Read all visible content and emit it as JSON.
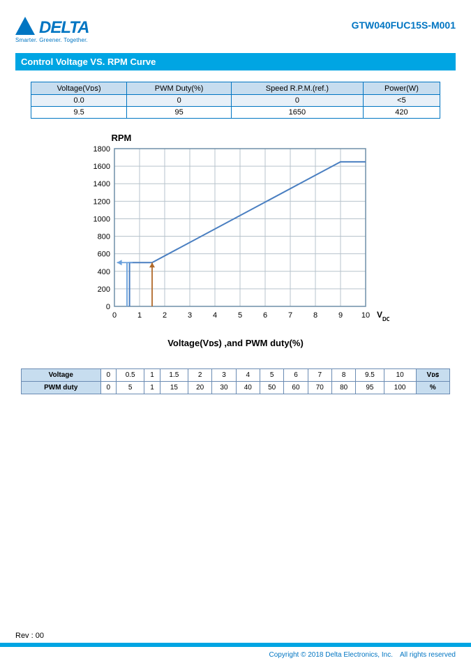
{
  "header": {
    "logo_text": "DELTA",
    "tagline": "Smarter.  Greener.  Together.",
    "part_number": "GTW040FUC15S-M001",
    "logo_color": "#0075c2"
  },
  "section_title": "Control Voltage VS. RPM Curve",
  "table1": {
    "headers": [
      "Voltage(Vᴅꜱ)",
      "PWM Duty(%)",
      "Speed R.P.M.(ref.)",
      "Power(W)"
    ],
    "rows": [
      [
        "0.0",
        "0",
        "0",
        "<5"
      ],
      [
        "9.5",
        "95",
        "1650",
        "420"
      ]
    ],
    "header_bg": "#c7ddef",
    "border_color": "#0075c2"
  },
  "chart": {
    "type": "line",
    "title": "RPM",
    "x_label": "V",
    "x_label_sub": "DC",
    "xlim": [
      0,
      10
    ],
    "ylim": [
      0,
      1800
    ],
    "xticks": [
      0,
      1,
      2,
      3,
      4,
      5,
      6,
      7,
      8,
      9,
      10
    ],
    "yticks": [
      0,
      200,
      400,
      600,
      800,
      1000,
      1200,
      1400,
      1600,
      1800
    ],
    "grid_color": "#b7c3cc",
    "axis_color": "#6e8fa8",
    "bg_color": "#ffffff",
    "main_series": {
      "color": "#4a7fc1",
      "width": 2,
      "points": [
        [
          0.6,
          0
        ],
        [
          0.6,
          500
        ],
        [
          1.5,
          500
        ],
        [
          9.0,
          1650
        ],
        [
          10,
          1650
        ]
      ]
    },
    "hysteresis_arrows": {
      "left": {
        "from": [
          0.5,
          500
        ],
        "to": [
          0.5,
          0
        ],
        "color": "#6aa0dc"
      },
      "right": {
        "from": [
          1.5,
          0
        ],
        "to": [
          1.5,
          500
        ],
        "color": "#b06a2a"
      }
    },
    "label_fontsize": 11,
    "title_fontsize": 13
  },
  "caption": "Voltage(Vᴅꜱ) ,and PWM duty(%)",
  "table2": {
    "row_headers": [
      "Voltage",
      "PWM duty"
    ],
    "columns": [
      "0",
      "0.5",
      "1",
      "1.5",
      "2",
      "3",
      "4",
      "5",
      "6",
      "7",
      "8",
      "9.5",
      "10"
    ],
    "unit_col": [
      "Vᴅꜱ",
      "%"
    ],
    "values": [
      [
        "0",
        "5",
        "1",
        "15",
        "20",
        "30",
        "40",
        "50",
        "60",
        "70",
        "80",
        "95",
        "100"
      ]
    ],
    "header_bg": "#c7ddef",
    "border_color": "#6a8bb3"
  },
  "footer": {
    "rev": "Rev : 00",
    "copyright": "Copyright © 2018 Delta Electronics, Inc. All rights reserved",
    "bar_color": "#00a5e3"
  }
}
